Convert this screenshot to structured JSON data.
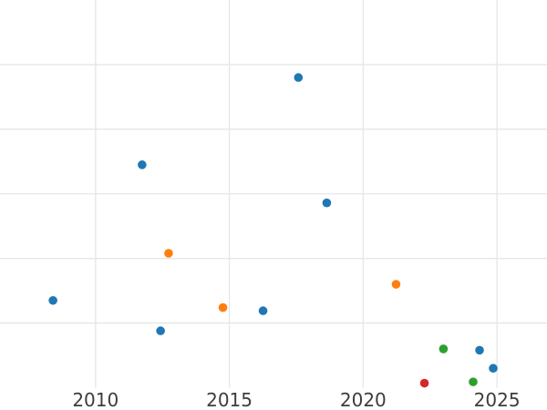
{
  "figure": {
    "background_color": "#ffffff",
    "grid_color": "#e6e6e6",
    "tick_label_color": "#3d3d3d",
    "title": ""
  },
  "chart_data": {
    "type": "scatter",
    "title": "",
    "xlabel": "",
    "ylabel": "",
    "grid": true,
    "legend": false,
    "x_ticks": [
      2010,
      2015,
      2020,
      2025
    ],
    "x_tick_labels": [
      "2010",
      "2015",
      "2020",
      "2025"
    ],
    "xlim": [
      2006.43,
      2026.87
    ],
    "y_ticks": [
      1,
      2,
      3,
      4,
      5
    ],
    "y_tick_labels": [],
    "ylim": [
      0,
      6
    ],
    "y_axis_note": "y tick labels are cropped outside the visible image; y values are measured in gridline units above the bottom axis",
    "marker_diameter_px": 9.6,
    "series": [
      {
        "name": "blue",
        "color": "#1f77b4",
        "points": [
          {
            "x": 2008.41,
            "y": 1.35
          },
          {
            "x": 2011.74,
            "y": 3.45
          },
          {
            "x": 2012.43,
            "y": 0.88
          },
          {
            "x": 2016.26,
            "y": 1.19
          },
          {
            "x": 2017.58,
            "y": 4.8
          },
          {
            "x": 2018.64,
            "y": 2.86
          },
          {
            "x": 2024.35,
            "y": 0.58
          },
          {
            "x": 2024.86,
            "y": 0.3
          }
        ]
      },
      {
        "name": "orange",
        "color": "#ff7f0e",
        "points": [
          {
            "x": 2012.73,
            "y": 2.08
          },
          {
            "x": 2014.76,
            "y": 1.24
          },
          {
            "x": 2021.23,
            "y": 1.6
          }
        ]
      },
      {
        "name": "green",
        "color": "#2ca02c",
        "points": [
          {
            "x": 2023.0,
            "y": 0.6
          },
          {
            "x": 2024.11,
            "y": 0.09
          }
        ]
      },
      {
        "name": "red",
        "color": "#d62728",
        "points": [
          {
            "x": 2022.29,
            "y": 0.07
          }
        ]
      }
    ]
  }
}
